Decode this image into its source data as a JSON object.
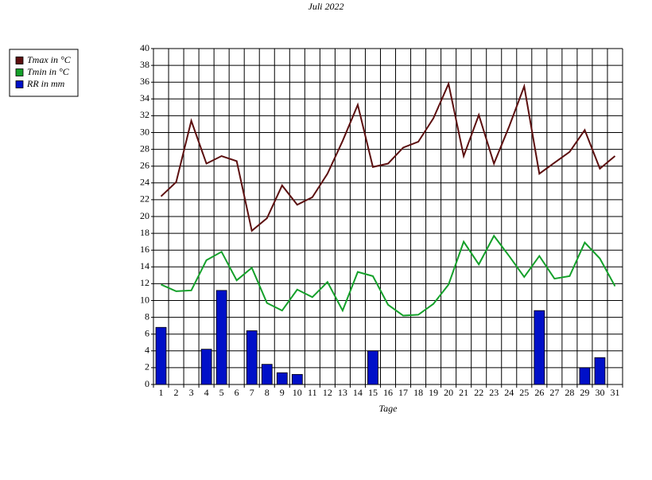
{
  "chart_data": {
    "type": "bar-line",
    "title": "Juli 2022",
    "x_label": "Tage",
    "categories": [
      "1",
      "2",
      "3",
      "4",
      "5",
      "6",
      "7",
      "8",
      "9",
      "10",
      "11",
      "12",
      "13",
      "14",
      "15",
      "16",
      "17",
      "18",
      "19",
      "20",
      "21",
      "22",
      "23",
      "24",
      "25",
      "26",
      "27",
      "28",
      "29",
      "30",
      "31"
    ],
    "series": [
      {
        "name": "Tmax in °C",
        "color": "#5c0f0f",
        "kind": "line",
        "values": [
          22.4,
          24.1,
          31.4,
          26.3,
          27.2,
          26.6,
          18.3,
          19.8,
          23.7,
          21.4,
          22.3,
          25.1,
          29.0,
          33.3,
          25.9,
          26.3,
          28.2,
          28.9,
          31.7,
          35.8,
          27.2,
          32.1,
          26.3,
          30.7,
          35.5,
          25.1,
          26.4,
          27.7,
          30.3,
          25.7,
          27.2
        ]
      },
      {
        "name": "Tmin in °C",
        "color": "#14a02a",
        "kind": "line",
        "values": [
          11.9,
          11.1,
          11.2,
          14.8,
          15.8,
          12.4,
          13.9,
          9.7,
          8.8,
          11.3,
          10.4,
          12.2,
          8.8,
          13.4,
          12.9,
          9.5,
          8.2,
          8.3,
          9.6,
          11.9,
          17.0,
          14.3,
          17.7,
          15.3,
          12.8,
          15.3,
          12.6,
          12.9,
          16.9,
          15.0,
          11.7
        ]
      },
      {
        "name": "RR in mm",
        "color": "#0010c8",
        "kind": "bar",
        "values": [
          6.8,
          0,
          0,
          4.2,
          11.2,
          0,
          6.4,
          2.4,
          1.4,
          1.2,
          0,
          0,
          0,
          0,
          4.0,
          0,
          0,
          0,
          0,
          0,
          0,
          0,
          0,
          0,
          0,
          8.8,
          0,
          0,
          2.0,
          3.2,
          0
        ]
      }
    ],
    "ylim": [
      0,
      40
    ],
    "yticks": [
      0,
      2,
      4,
      6,
      8,
      10,
      12,
      14,
      16,
      18,
      20,
      22,
      24,
      26,
      28,
      30,
      32,
      34,
      36,
      38,
      40
    ],
    "grid": true,
    "legend": "left"
  }
}
